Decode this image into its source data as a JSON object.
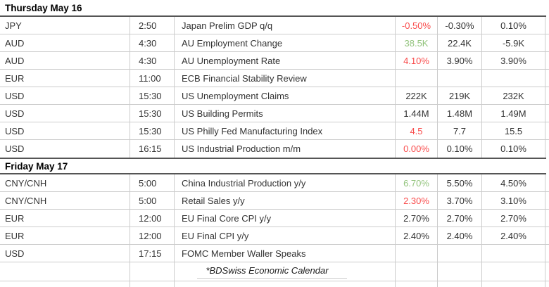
{
  "colors": {
    "positive": "#93c47d",
    "negative": "#f94c4c",
    "text": "#333333",
    "light_border": "#cccccc",
    "dark_border": "#555555"
  },
  "columns": [
    "currency",
    "time",
    "event",
    "actual",
    "forecast",
    "previous"
  ],
  "sections": [
    {
      "title": "Thursday May 16",
      "rows": [
        {
          "currency": "JPY",
          "time": "2:50",
          "event": "Japan Prelim GDP q/q",
          "actual": "-0.50%",
          "actual_tone": "negative",
          "forecast": "-0.30%",
          "previous": "0.10%"
        },
        {
          "currency": "AUD",
          "time": "4:30",
          "event": "AU Employment Change",
          "actual": "38.5K",
          "actual_tone": "positive",
          "forecast": "22.4K",
          "previous": "-5.9K"
        },
        {
          "currency": "AUD",
          "time": "4:30",
          "event": "AU Unemployment Rate",
          "actual": "4.10%",
          "actual_tone": "negative",
          "forecast": "3.90%",
          "previous": "3.90%"
        },
        {
          "currency": "EUR",
          "time": "11:00",
          "event": "ECB Financial Stability Review",
          "actual": "",
          "actual_tone": "neutral",
          "forecast": "",
          "previous": ""
        },
        {
          "currency": "USD",
          "time": "15:30",
          "event": "US Unemployment Claims",
          "actual": "222K",
          "actual_tone": "neutral",
          "forecast": "219K",
          "previous": "232K"
        },
        {
          "currency": "USD",
          "time": "15:30",
          "event": "US Building Permits",
          "actual": "1.44M",
          "actual_tone": "neutral",
          "forecast": "1.48M",
          "previous": "1.49M"
        },
        {
          "currency": "USD",
          "time": "15:30",
          "event": "US Philly Fed Manufacturing Index",
          "actual": "4.5",
          "actual_tone": "negative",
          "forecast": "7.7",
          "previous": "15.5"
        },
        {
          "currency": "USD",
          "time": "16:15",
          "event": "US Industrial Production m/m",
          "actual": "0.00%",
          "actual_tone": "negative",
          "forecast": "0.10%",
          "previous": "0.10%"
        }
      ]
    },
    {
      "title": "Friday May 17",
      "rows": [
        {
          "currency": "CNY/CNH",
          "time": "5:00",
          "event": "China Industrial Production y/y",
          "actual": "6.70%",
          "actual_tone": "positive",
          "forecast": "5.50%",
          "previous": "4.50%"
        },
        {
          "currency": "CNY/CNH",
          "time": "5:00",
          "event": "Retail Sales y/y",
          "actual": "2.30%",
          "actual_tone": "negative",
          "forecast": "3.70%",
          "previous": "3.10%"
        },
        {
          "currency": "EUR",
          "time": "12:00",
          "event": "EU Final Core CPI y/y",
          "actual": "2.70%",
          "actual_tone": "neutral",
          "forecast": "2.70%",
          "previous": "2.70%"
        },
        {
          "currency": "EUR",
          "time": "12:00",
          "event": "EU Final CPI y/y",
          "actual": "2.40%",
          "actual_tone": "neutral",
          "forecast": "2.40%",
          "previous": "2.40%"
        },
        {
          "currency": "USD",
          "time": "17:15",
          "event": "FOMC Member Waller Speaks",
          "actual": "",
          "actual_tone": "neutral",
          "forecast": "",
          "previous": ""
        }
      ]
    }
  ],
  "footer": {
    "note": "*BDSwiss Economic Calendar"
  }
}
